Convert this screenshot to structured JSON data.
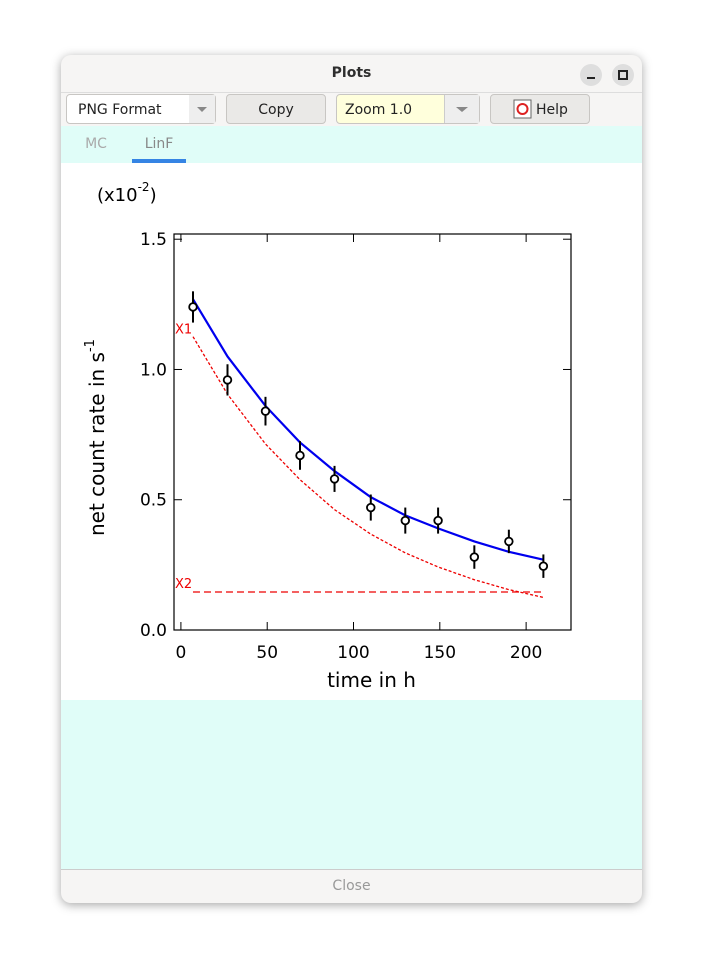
{
  "window": {
    "title": "Plots"
  },
  "toolbar": {
    "format": "PNG Format",
    "copy": "Copy",
    "zoom": "Zoom 1.0",
    "help": "Help"
  },
  "tabs": [
    "MC",
    "LinF"
  ],
  "footer": {
    "close": "Close"
  },
  "chart_data": {
    "type": "scatter",
    "multiplier": {
      "base": "(x10",
      "exp": "-2",
      "end": ")"
    },
    "xlabel": "time in h",
    "ylabel": "net count rate in s",
    "ylabel_sup": "-1",
    "xlim": [
      -4,
      226
    ],
    "xticks": [
      0,
      50,
      100,
      150,
      200
    ],
    "ylim": [
      0,
      1.52
    ],
    "yticks": [
      {
        "value": 0,
        "label": "0.0"
      },
      {
        "value": 0.5,
        "label": "0.5"
      },
      {
        "value": 1,
        "label": "1.0"
      },
      {
        "value": 1.5,
        "label": "1.5"
      }
    ],
    "points": {
      "color": "#000000",
      "x": [
        7,
        27,
        49,
        69,
        89,
        110,
        130,
        149,
        170,
        190,
        210
      ],
      "values": [
        1.24,
        0.96,
        0.84,
        0.67,
        0.58,
        0.47,
        0.42,
        0.42,
        0.28,
        0.34,
        0.245
      ],
      "errors": [
        0.06,
        0.06,
        0.055,
        0.055,
        0.05,
        0.05,
        0.05,
        0.05,
        0.045,
        0.045,
        0.045
      ]
    },
    "series": [
      {
        "color": "#0000ee",
        "style": "solid",
        "x": [
          7,
          27,
          49,
          69,
          89,
          110,
          130,
          149,
          170,
          190,
          210
        ],
        "values": [
          1.27,
          1.05,
          0.86,
          0.72,
          0.61,
          0.51,
          0.44,
          0.39,
          0.34,
          0.3,
          0.27
        ]
      },
      {
        "name": "X1",
        "color": "#ee0000",
        "style": "dotted",
        "x": [
          7,
          27,
          49,
          69,
          89,
          110,
          130,
          149,
          170,
          190,
          210
        ],
        "values": [
          1.126,
          0.905,
          0.714,
          0.577,
          0.462,
          0.368,
          0.296,
          0.242,
          0.193,
          0.155,
          0.125
        ]
      },
      {
        "name": "X2",
        "color": "#ee0000",
        "style": "dashed",
        "x": [
          7,
          210
        ],
        "values": [
          0.146,
          0.146
        ]
      }
    ]
  }
}
